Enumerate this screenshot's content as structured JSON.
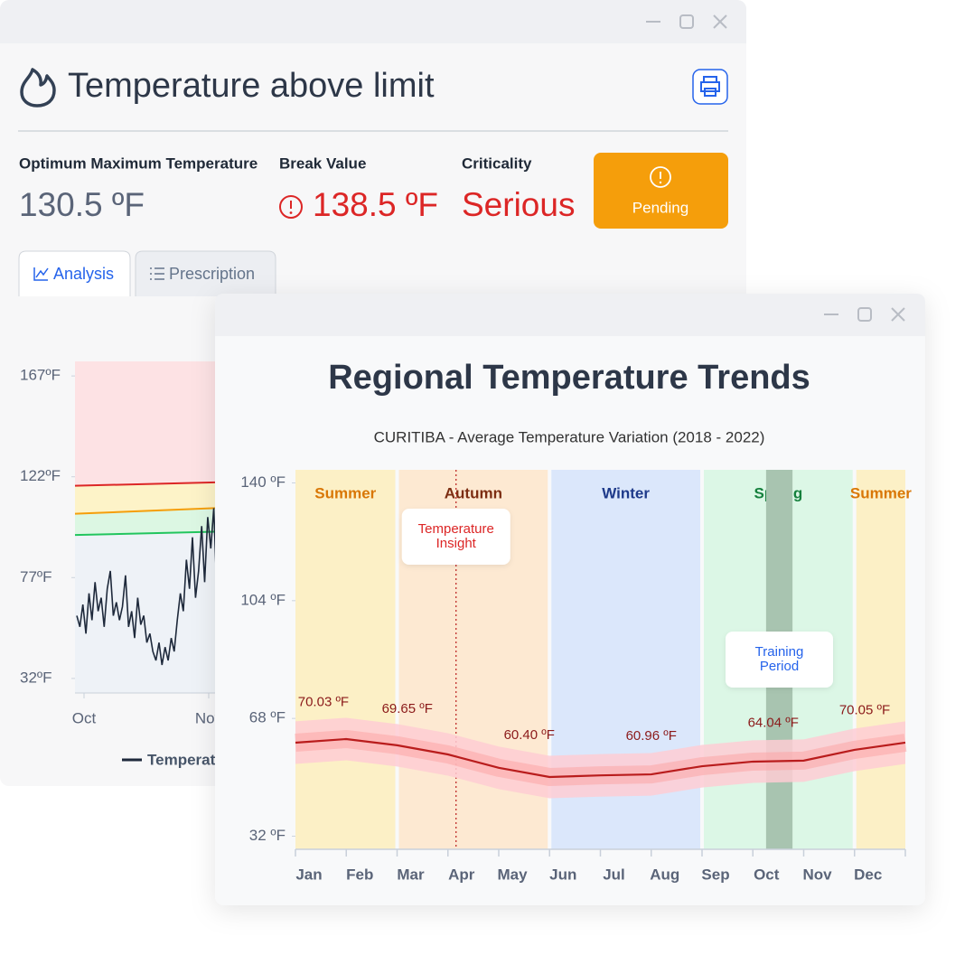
{
  "back_window": {
    "title": "Temperature above limit",
    "fields": [
      {
        "label": "Optimum Maximum Temperature",
        "value": "130.5 ºF"
      },
      {
        "label": "Break Value",
        "value": "138.5 ºF"
      },
      {
        "label": "Criticality",
        "value": "Serious"
      }
    ],
    "status": "Pending",
    "tabs": [
      "Analysis",
      "Prescription"
    ],
    "chart": {
      "type": "line",
      "ylim": [
        25.5,
        173.5
      ],
      "yticks": [
        {
          "value": 167,
          "label": "167ºF"
        },
        {
          "value": 122,
          "label": "122ºF"
        },
        {
          "value": 77,
          "label": "77ºF"
        },
        {
          "value": 32,
          "label": "32ºF"
        }
      ],
      "xticks": [
        "Oct",
        "Nov"
      ],
      "thresholds": [
        {
          "color": "#dc2626",
          "values": [
            118,
            119.5
          ]
        },
        {
          "color": "#f59e0b",
          "values": [
            105.5,
            108
          ]
        },
        {
          "color": "#22c55e",
          "values": [
            96,
            97.5
          ]
        }
      ],
      "series": [
        {
          "name": "Temperature",
          "color": "#1e293b",
          "values": [
            60,
            55,
            65,
            52,
            70,
            58,
            75,
            62,
            68,
            55,
            72,
            80,
            60,
            66,
            58,
            64,
            78,
            55,
            62,
            50,
            68,
            56,
            60,
            48,
            52,
            44,
            40,
            48,
            38,
            46,
            40,
            50,
            44,
            58,
            70,
            62,
            85,
            72,
            95,
            68,
            80,
            100,
            75,
            104,
            90,
            108,
            70
          ]
        }
      ]
    }
  },
  "front_window": {
    "chart": {
      "type": "line",
      "title": "Regional Temperature Trends",
      "subtitle": "CURITIBA - Average Temperature Variation (2018 - 2022)",
      "categories": [
        "Jan",
        "Feb",
        "Mar",
        "Apr",
        "May",
        "Jun",
        "Jul",
        "Aug",
        "Sep",
        "Oct",
        "Nov",
        "Dec"
      ],
      "ylim": [
        28,
        144
      ],
      "yticks": [
        {
          "value": 32,
          "label": "32 ºF"
        },
        {
          "value": 68,
          "label": "68 ºF"
        },
        {
          "value": 104,
          "label": "104 ºF"
        },
        {
          "value": 140,
          "label": "140 ºF"
        }
      ],
      "seasons": [
        {
          "name": "Summer",
          "start": 0,
          "end": 2,
          "color": "#fcf0c6",
          "label_color": "#d97706"
        },
        {
          "name": "Autumn",
          "start": 2,
          "end": 5,
          "color": "#fde9d2",
          "label_color": "#7c2d12"
        },
        {
          "name": "Winter",
          "start": 5,
          "end": 8,
          "color": "#dbe7fb",
          "label_color": "#1e3a8a"
        },
        {
          "name": "Spring",
          "start": 8,
          "end": 11,
          "color": "#dcf7e6",
          "label_color": "#15803d"
        },
        {
          "name": "Summer",
          "start": 11,
          "end": 12,
          "color": "#fcf0c6",
          "label_color": "#d97706"
        }
      ],
      "highlight": {
        "name": "Training Period",
        "start": 9.26,
        "end": 9.78,
        "color": "#a8c4b0"
      },
      "insight": {
        "name": "Temperature Insight",
        "at": 3.16,
        "color": "#b91c1c"
      },
      "series": [
        {
          "color": "#b91c1c",
          "x": [
            0,
            1,
            2,
            3,
            4,
            5,
            6,
            7,
            8,
            9,
            10,
            11,
            12
          ],
          "values": [
            60.6,
            61.7,
            59.8,
            57,
            52.9,
            50.1,
            50.6,
            50.9,
            53.4,
            54.8,
            55.1,
            58.4,
            60.6
          ],
          "lower": [
            54.1,
            55.2,
            53.3,
            50.5,
            46.4,
            43.6,
            44.1,
            44.4,
            46.9,
            48.3,
            48.6,
            51.9,
            54.1
          ],
          "upper": [
            67.1,
            68.2,
            66.3,
            63.5,
            59.4,
            56.6,
            57.1,
            57.4,
            59.9,
            61.3,
            61.6,
            64.9,
            67.1
          ]
        }
      ],
      "annotations": [
        {
          "text": "70.03 ºF",
          "x": 0.55
        },
        {
          "text": "69.65 ºF",
          "x": 2.2
        },
        {
          "text": "60.40 ºF",
          "x": 4.6
        },
        {
          "text": "60.96 ºF",
          "x": 7
        },
        {
          "text": "64.04 ºF",
          "x": 9.4
        },
        {
          "text": "70.05 ºF",
          "x": 11.2
        }
      ]
    }
  }
}
